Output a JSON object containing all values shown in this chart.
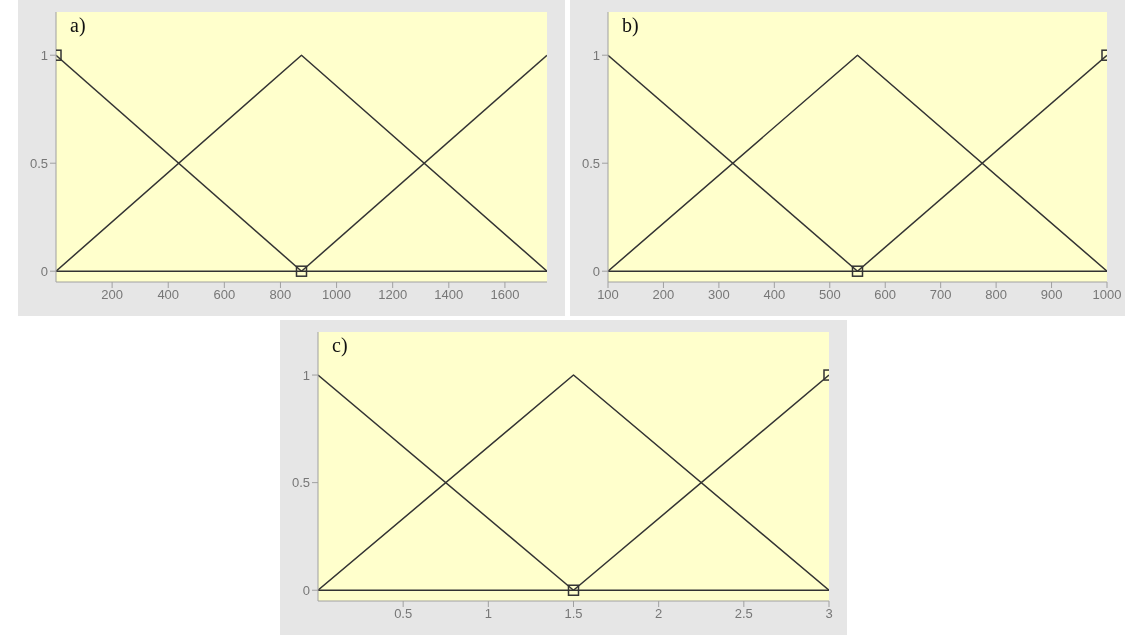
{
  "chart_data": [
    {
      "type": "line",
      "title": "a)",
      "xlim": [
        0,
        1750
      ],
      "xticks": [
        200,
        400,
        600,
        800,
        1000,
        1200,
        1400,
        1600
      ],
      "ylim": [
        -0.05,
        1.2
      ],
      "yticks": [
        0,
        0.5,
        1
      ],
      "grid": false,
      "legend": false,
      "line_style": "solid",
      "ref_lines": [
        {
          "axis": "y",
          "value": 0,
          "color": "#333333"
        }
      ],
      "series": [
        {
          "color": "#333333",
          "x": [
            0,
            875
          ],
          "values": [
            1,
            0
          ],
          "marker": "square"
        },
        {
          "color": "#333333",
          "x": [
            0,
            875,
            1750
          ],
          "values": [
            0,
            1,
            0
          ],
          "marker": "none"
        },
        {
          "color": "#333333",
          "x": [
            875,
            1750
          ],
          "values": [
            0,
            1
          ],
          "marker": "none"
        }
      ]
    },
    {
      "type": "line",
      "title": "b)",
      "xlim": [
        100,
        1000
      ],
      "xticks": [
        100,
        200,
        300,
        400,
        500,
        600,
        700,
        800,
        900,
        1000
      ],
      "ylim": [
        -0.05,
        1.2
      ],
      "yticks": [
        0,
        0.5,
        1
      ],
      "grid": false,
      "legend": false,
      "line_style": "solid",
      "ref_lines": [
        {
          "axis": "y",
          "value": 0,
          "color": "#333333"
        }
      ],
      "series": [
        {
          "color": "#333333",
          "x": [
            100,
            550
          ],
          "values": [
            1,
            0
          ]
        },
        {
          "color": "#333333",
          "x": [
            100,
            550,
            1000
          ],
          "values": [
            0,
            1,
            0
          ],
          "marker": "none"
        },
        {
          "color": "#333333",
          "x": [
            550,
            1000
          ],
          "values": [
            0,
            1
          ],
          "marker": "square"
        }
      ]
    },
    {
      "type": "line",
      "title": "c)",
      "xlim": [
        0,
        3
      ],
      "xticks": [
        0.5,
        1,
        1.5,
        2,
        2.5,
        3
      ],
      "ylim": [
        -0.05,
        1.2
      ],
      "yticks": [
        0,
        0.5,
        1
      ],
      "grid": false,
      "legend": false,
      "line_style": "solid",
      "ref_lines": [
        {
          "axis": "y",
          "value": 0,
          "color": "#333333"
        }
      ],
      "series": [
        {
          "color": "#333333",
          "x": [
            0,
            1.5
          ],
          "values": [
            1,
            0
          ]
        },
        {
          "color": "#333333",
          "x": [
            0,
            1.5,
            3
          ],
          "values": [
            0,
            1,
            0
          ],
          "marker": "none"
        },
        {
          "color": "#333333",
          "x": [
            1.5,
            3
          ],
          "values": [
            0,
            1
          ],
          "marker": "square"
        }
      ]
    }
  ]
}
